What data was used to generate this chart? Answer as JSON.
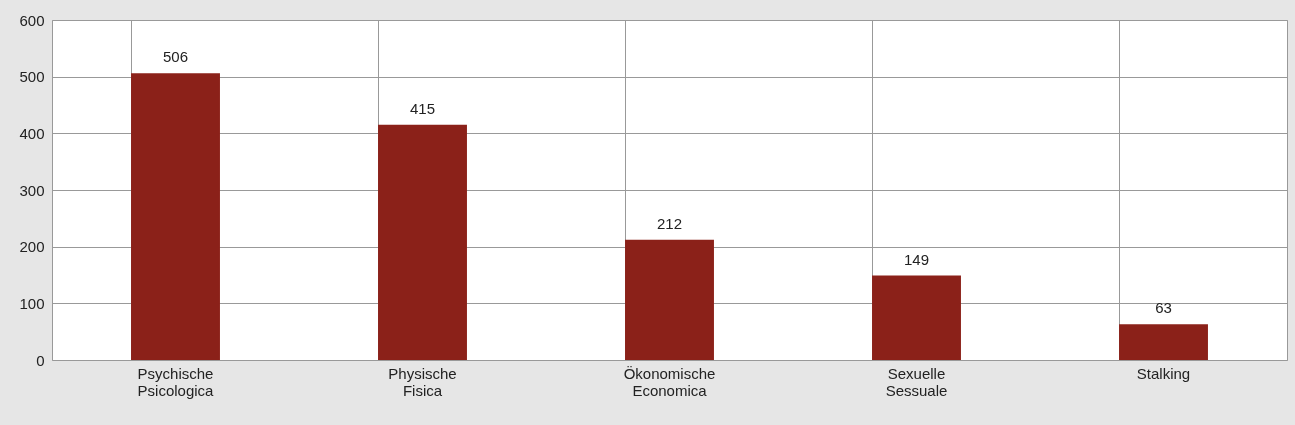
{
  "chart_data": {
    "type": "bar",
    "categories": [
      "Psychische\nPsicologica",
      "Physische\nFisica",
      "Ökonomische\nEconomica",
      "Sexuelle\nSessuale",
      "Stalking"
    ],
    "values": [
      506,
      415,
      212,
      149,
      63
    ],
    "color": "#8b2119",
    "ylim": [
      0,
      600
    ],
    "yticks": [
      0,
      100,
      200,
      300,
      400,
      500,
      600
    ],
    "grid": true,
    "data_labels": true
  }
}
